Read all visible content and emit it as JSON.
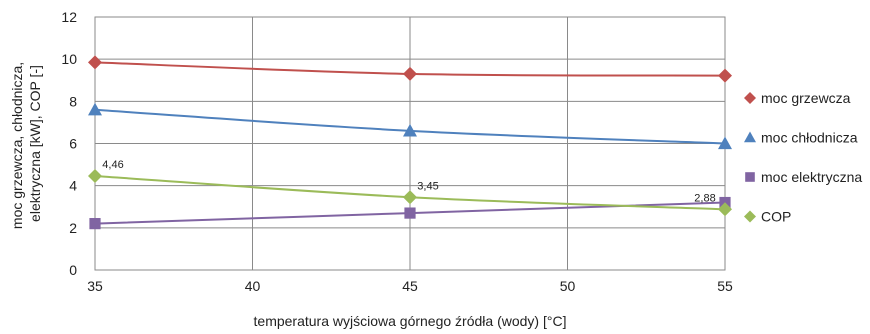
{
  "chart_data": {
    "type": "line",
    "xlabel": "temperatura wyjściowa górnego źródła (wody) [°C]",
    "ylabel_lines": [
      "moc grzewcza, chłodnicza,",
      "elektryczna [kW], COP [-]"
    ],
    "x": [
      35,
      45,
      55
    ],
    "x_ticks": [
      35,
      40,
      45,
      50,
      55
    ],
    "xlim": [
      35,
      55
    ],
    "y_ticks": [
      0,
      2,
      4,
      6,
      8,
      10,
      12
    ],
    "ylim": [
      0,
      12
    ],
    "grid": true,
    "legend_position": "right",
    "series": [
      {
        "name": "moc grzewcza",
        "values": [
          9.85,
          9.3,
          9.22
        ],
        "color": "#c0504d",
        "marker": "diamond"
      },
      {
        "name": "moc chłodnicza",
        "values": [
          7.6,
          6.6,
          6.0
        ],
        "color": "#4f81bd",
        "marker": "triangle"
      },
      {
        "name": "moc elektryczna",
        "values": [
          2.2,
          2.7,
          3.2
        ],
        "color": "#8064a2",
        "marker": "square"
      },
      {
        "name": "COP",
        "values": [
          4.46,
          3.45,
          2.88
        ],
        "color": "#9bbb59",
        "marker": "diamond",
        "data_labels": [
          "4,46",
          "3,45",
          "2,88"
        ]
      }
    ]
  }
}
